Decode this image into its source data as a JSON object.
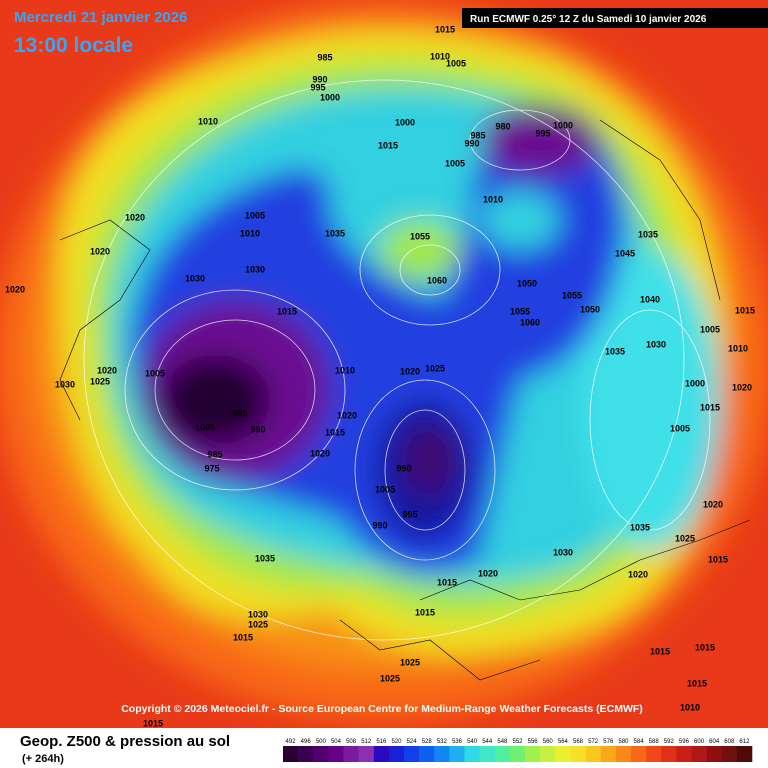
{
  "header": {
    "date": "Mercredi 21 janvier 2026",
    "time": "13:00 locale",
    "run": "Run ECMWF 0.25° 12 Z du Samedi 10 janvier 2026"
  },
  "copyright": "Copyright © 2026 Meteociel.fr - Source European Centre for Medium-Range Weather Forecasts (ECMWF)",
  "legend": {
    "title": "Geop. Z500 & pression au sol",
    "lead": "(+ 264h)",
    "labels": [
      492,
      496,
      500,
      504,
      508,
      512,
      516,
      520,
      524,
      528,
      532,
      536,
      540,
      544,
      548,
      552,
      556,
      560,
      564,
      568,
      572,
      576,
      580,
      584,
      588,
      592,
      596,
      600,
      604,
      608,
      612
    ],
    "colors": [
      "#2a0030",
      "#3c0050",
      "#520070",
      "#660088",
      "#7a1aa0",
      "#8a30b0",
      "#2a0ac0",
      "#1a20d8",
      "#1040e8",
      "#1060f0",
      "#1088f0",
      "#20b0f0",
      "#30d8e8",
      "#40e8c8",
      "#50f0a0",
      "#70f070",
      "#a0f050",
      "#c8f040",
      "#e8f030",
      "#f8e028",
      "#f8c820",
      "#f8a818",
      "#f88818",
      "#f86818",
      "#f04818",
      "#e03018",
      "#c82018",
      "#b01818",
      "#901010",
      "#701010",
      "#500808"
    ]
  },
  "pressure_labels": [
    985,
    990,
    995,
    1000,
    1010,
    1015,
    1010,
    1005,
    1000,
    1015,
    980,
    985,
    990,
    995,
    1000,
    1005,
    1010,
    1005,
    1010,
    1035,
    1030,
    1030,
    1015,
    1055,
    1060,
    1050,
    1055,
    1060,
    1045,
    1035,
    1020,
    1020,
    1020,
    1005,
    1030,
    1025,
    1020,
    995,
    990,
    1005,
    985,
    975,
    1010,
    1020,
    1025,
    1020,
    1015,
    1020,
    990,
    995,
    990,
    1005,
    1030,
    1035,
    1025,
    1020,
    1015,
    1020,
    1015,
    1020,
    1035,
    1030,
    1025,
    1015,
    1015,
    1025,
    1025,
    1015,
    1015,
    1015,
    1015,
    1010,
    1000,
    1015,
    1005,
    1005,
    1015,
    1010,
    1020,
    1030,
    1040,
    1035,
    1050,
    1055
  ]
}
